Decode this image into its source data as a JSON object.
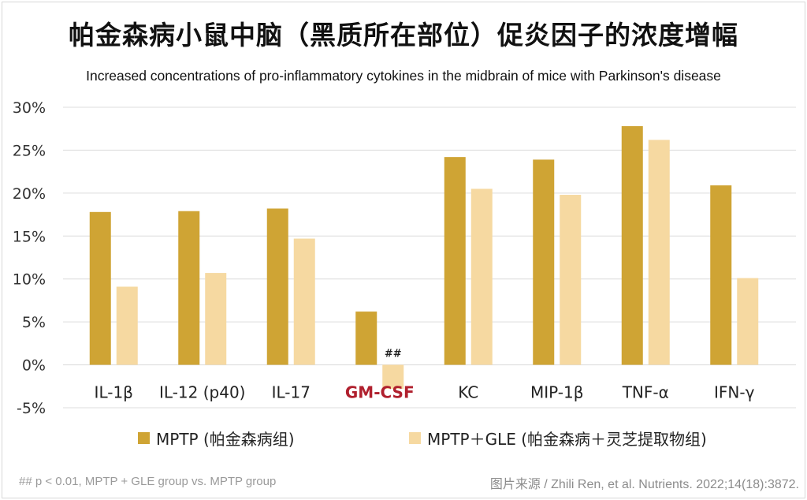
{
  "title": "帕金森病小鼠中脑（黑质所在部位）促炎因子的浓度增幅",
  "subtitle": "Increased concentrations of pro-inflammatory cytokines in the midbrain of mice with Parkinson's disease",
  "footnote": "## p < 0.01, MPTP + GLE group vs. MPTP group",
  "source": "图片来源 / Zhili Ren, et al. Nutrients. 2022;14(18):3872.",
  "colors": {
    "series1": "#cfa434",
    "series2": "#f6d9a1",
    "highlight": "#b0202e",
    "grid": "#dcdcdc",
    "text": "#222222"
  },
  "chart_data": {
    "type": "bar",
    "categories": [
      "IL-1β",
      "IL-12 (p40)",
      "IL-17",
      "GM-CSF",
      "KC",
      "MIP-1β",
      "TNF-α",
      "IFN-γ"
    ],
    "highlight_category": "GM-CSF",
    "series": [
      {
        "name": "MPTP (帕金森病组)",
        "values": [
          17.8,
          17.9,
          18.2,
          6.2,
          24.2,
          23.9,
          27.8,
          20.9
        ]
      },
      {
        "name": "MPTP＋GLE (帕金森病＋灵芝提取物组)",
        "values": [
          9.1,
          10.7,
          14.7,
          -2.8,
          20.5,
          19.8,
          26.2,
          10.1
        ]
      }
    ],
    "annotations": [
      {
        "category": "GM-CSF",
        "series": 1,
        "text": "##"
      }
    ],
    "ylim": [
      -5,
      30
    ],
    "yticks": [
      -5,
      0,
      5,
      10,
      15,
      20,
      25,
      30
    ],
    "ytick_labels": [
      "-5%",
      "0%",
      "5%",
      "10%",
      "15%",
      "20%",
      "25%",
      "30%"
    ],
    "xlabel": "",
    "ylabel": "",
    "grid": true,
    "legend_position": "bottom"
  }
}
